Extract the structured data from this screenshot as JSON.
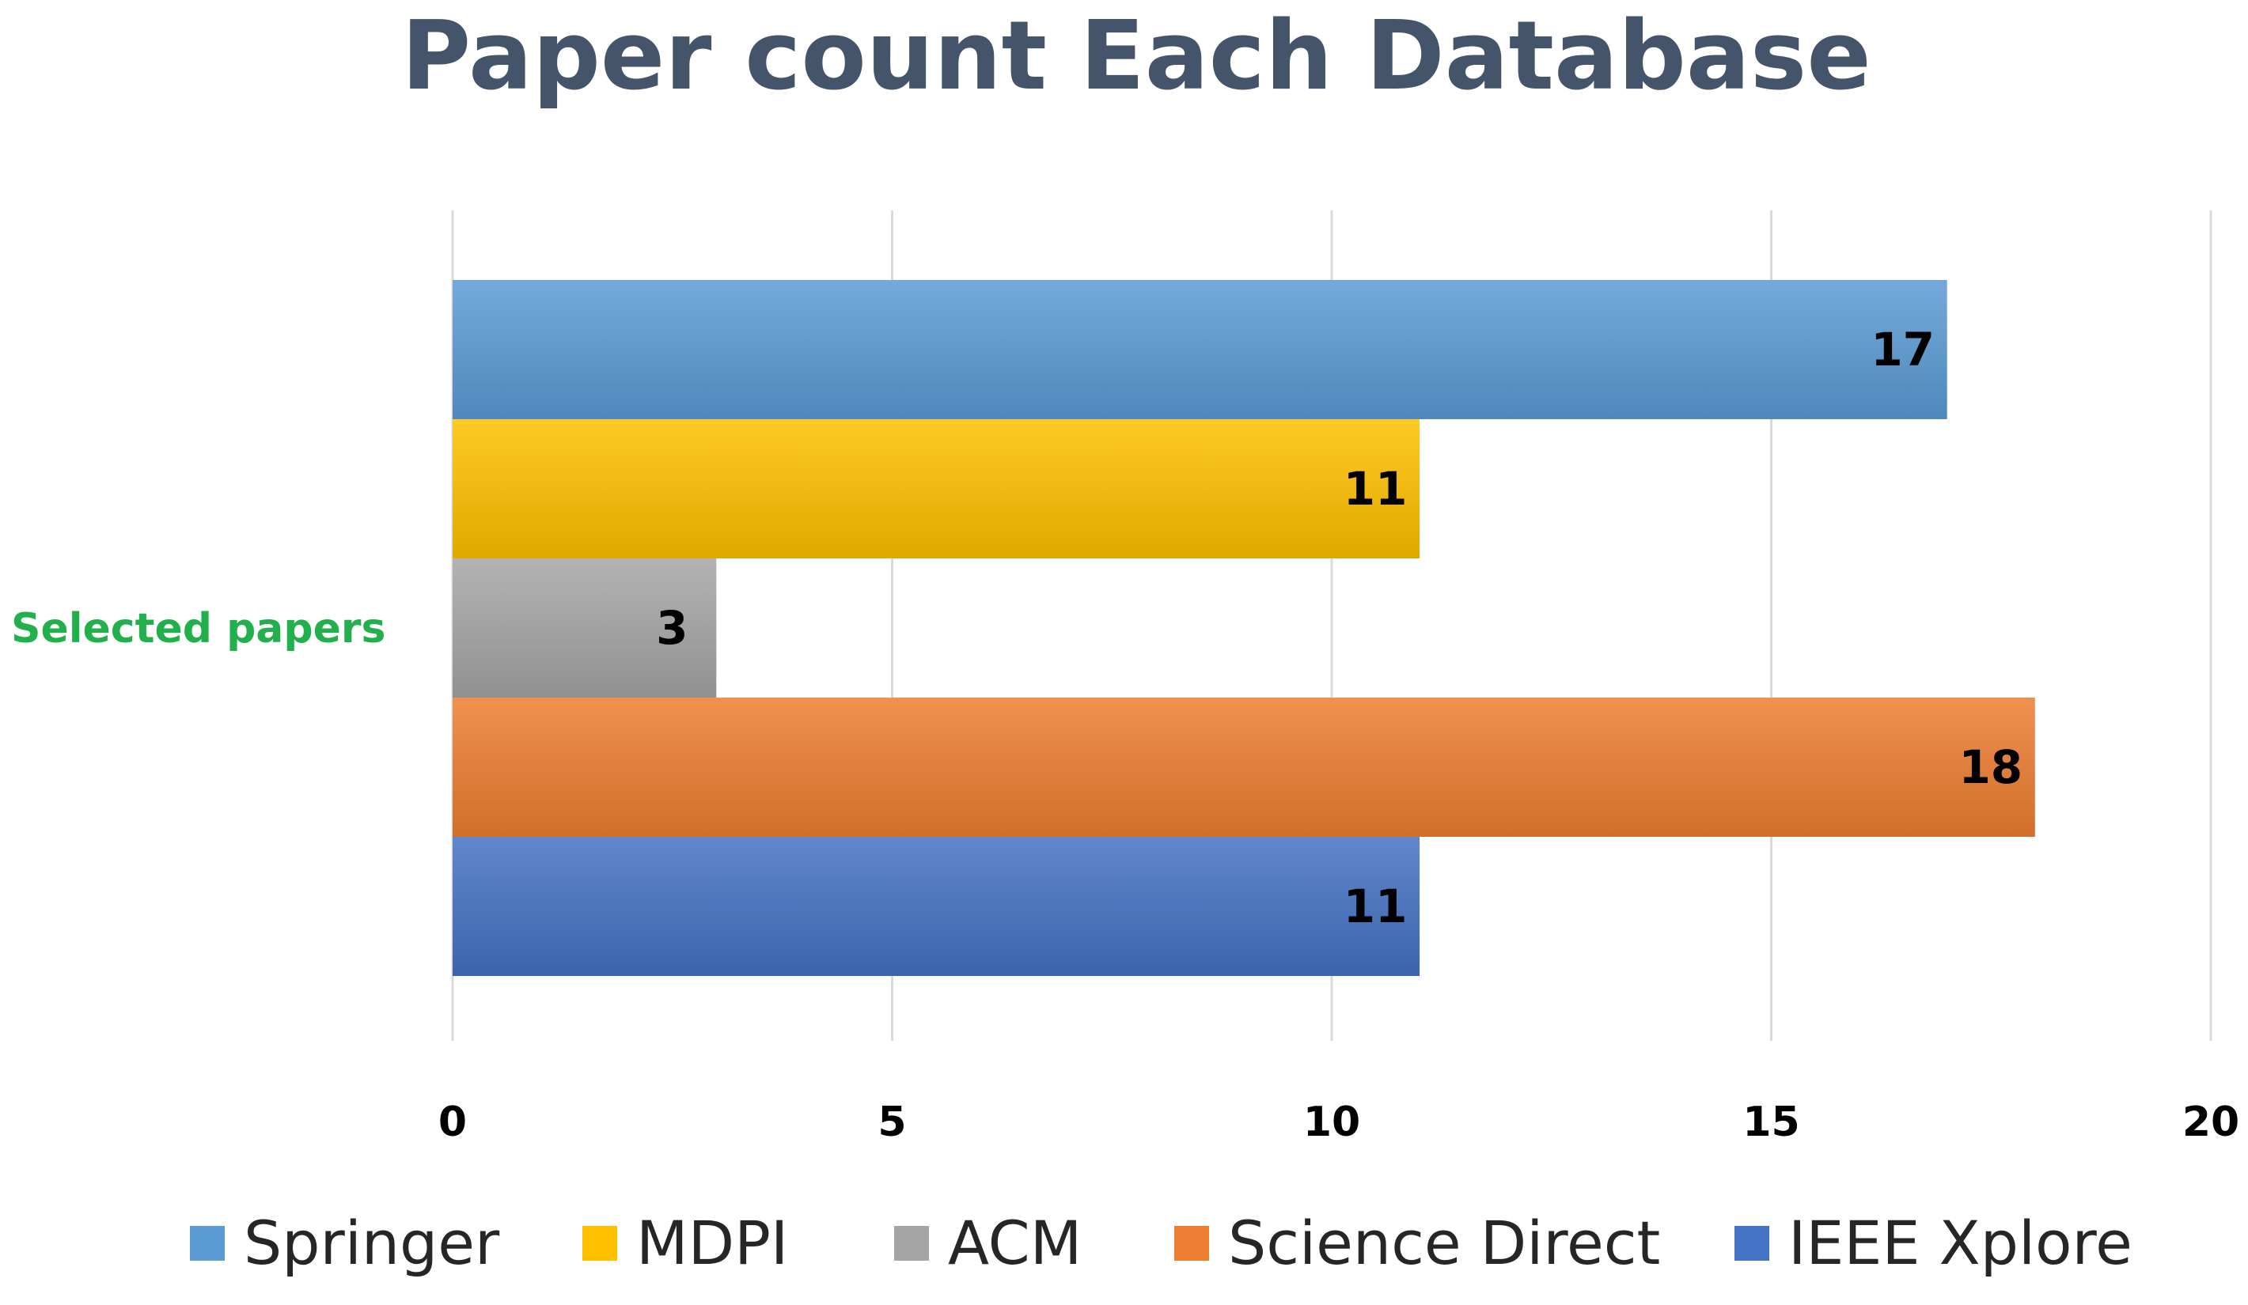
{
  "chart_data": {
    "type": "bar",
    "orientation": "horizontal",
    "title": "Paper count Each Database",
    "categories": [
      "Selected papers"
    ],
    "series": [
      {
        "name": "Springer",
        "values": [
          17
        ],
        "color": "#5b9bd5"
      },
      {
        "name": "MDPI",
        "values": [
          11
        ],
        "color": "#ffc000"
      },
      {
        "name": "ACM",
        "values": [
          3
        ],
        "color": "#a5a5a5"
      },
      {
        "name": "Science Direct",
        "values": [
          18
        ],
        "color": "#ed7d31"
      },
      {
        "name": "IEEE Xplore",
        "values": [
          11
        ],
        "color": "#4472c4"
      }
    ],
    "xlim": [
      0,
      20
    ],
    "xticks": [
      0,
      5,
      10,
      15,
      20
    ],
    "xlabel": "",
    "ylabel": "",
    "grid": "vertical",
    "legend": "bottom",
    "category_label_color": "#21b04b",
    "title_color": "#44546a"
  }
}
